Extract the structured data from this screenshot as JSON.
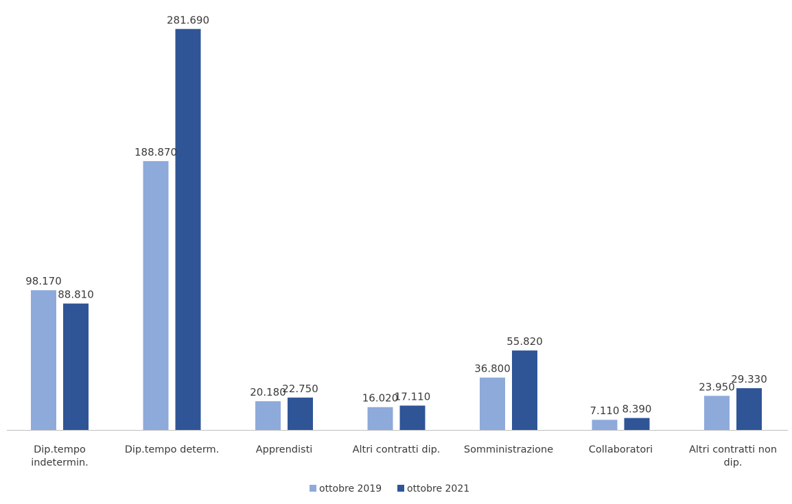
{
  "chart_data": {
    "type": "bar",
    "title": "",
    "xlabel": "",
    "ylabel": "",
    "categories": [
      "Dip.tempo indetermin.",
      "Dip.tempo determ.",
      "Apprendisti",
      "Altri contratti dip.",
      "Somministrazione",
      "Collaboratori",
      "Altri contratti non dip."
    ],
    "category_lines": [
      [
        "Dip.tempo",
        "indetermin."
      ],
      [
        "Dip.tempo determ."
      ],
      [
        "Apprendisti"
      ],
      [
        "Altri contratti dip."
      ],
      [
        "Somministrazione"
      ],
      [
        "Collaboratori"
      ],
      [
        "Altri contratti non",
        "dip."
      ]
    ],
    "series": [
      {
        "name": "ottobre 2019",
        "color": "#8eaadb",
        "values": [
          98170,
          188870,
          20180,
          16020,
          36800,
          7110,
          23950
        ],
        "labels": [
          "98.170",
          "188.870",
          "20.180",
          "16.020",
          "36.800",
          "7.110",
          "23.950"
        ]
      },
      {
        "name": "ottobre 2021",
        "color": "#2f5597",
        "values": [
          88810,
          281690,
          22750,
          17110,
          55820,
          8390,
          29330
        ],
        "labels": [
          "88.810",
          "281.690",
          "22.750",
          "17.110",
          "55.820",
          "8.390",
          "29.330"
        ]
      }
    ],
    "ylim": [
      0,
      290000
    ],
    "grid": false,
    "legend_position": "bottom",
    "axis_color": "#bfbfbf"
  }
}
